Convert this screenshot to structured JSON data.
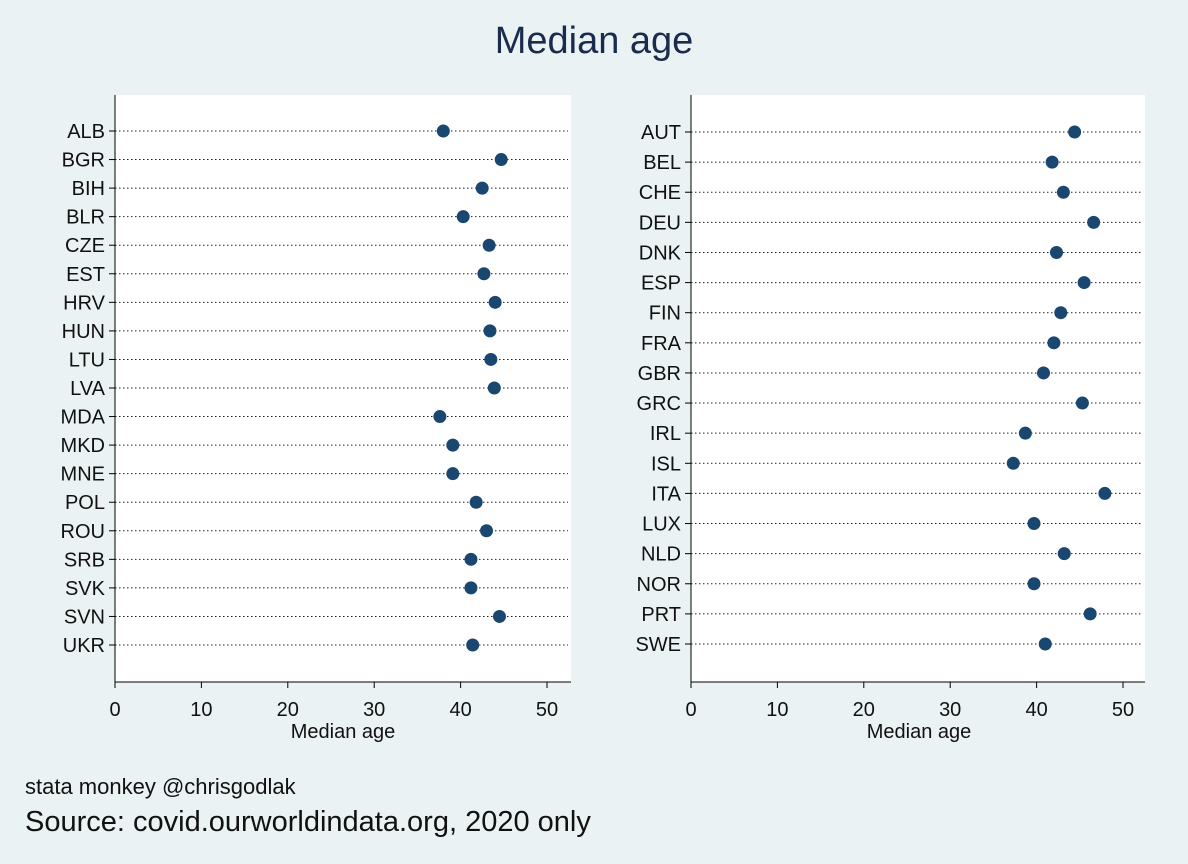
{
  "title": "Median age",
  "note": "stata monkey @chrisgodlak",
  "source": "Source: covid.ourworldindata.org, 2020 only",
  "colors": {
    "marker": "#1a476f",
    "background": "#eaf2f3",
    "plot": "#ffffff"
  },
  "chart_data": [
    {
      "type": "scatter",
      "xlabel": "Median age",
      "xlim": [
        0,
        52.5
      ],
      "xticks": [
        0,
        10,
        20,
        30,
        40,
        50
      ],
      "grid": "dotted horizontal lines per category",
      "categories": [
        "ALB",
        "BGR",
        "BIH",
        "BLR",
        "CZE",
        "EST",
        "HRV",
        "HUN",
        "LTU",
        "LVA",
        "MDA",
        "MKD",
        "MNE",
        "POL",
        "ROU",
        "SRB",
        "SVK",
        "SVN",
        "UKR"
      ],
      "values": [
        38.0,
        44.7,
        42.5,
        40.3,
        43.3,
        42.7,
        44.0,
        43.4,
        43.5,
        43.9,
        37.6,
        39.1,
        39.1,
        41.8,
        43.0,
        41.2,
        41.2,
        44.5,
        41.4
      ]
    },
    {
      "type": "scatter",
      "xlabel": "Median age",
      "xlim": [
        0,
        52.5
      ],
      "xticks": [
        0,
        10,
        20,
        30,
        40,
        50
      ],
      "grid": "dotted horizontal lines per category",
      "categories": [
        "AUT",
        "BEL",
        "CHE",
        "DEU",
        "DNK",
        "ESP",
        "FIN",
        "FRA",
        "GBR",
        "GRC",
        "IRL",
        "ISL",
        "ITA",
        "LUX",
        "NLD",
        "NOR",
        "PRT",
        "SWE"
      ],
      "values": [
        44.4,
        41.8,
        43.1,
        46.6,
        42.3,
        45.5,
        42.8,
        42.0,
        40.8,
        45.3,
        38.7,
        37.3,
        47.9,
        39.7,
        43.2,
        39.7,
        46.2,
        41.0
      ]
    }
  ]
}
